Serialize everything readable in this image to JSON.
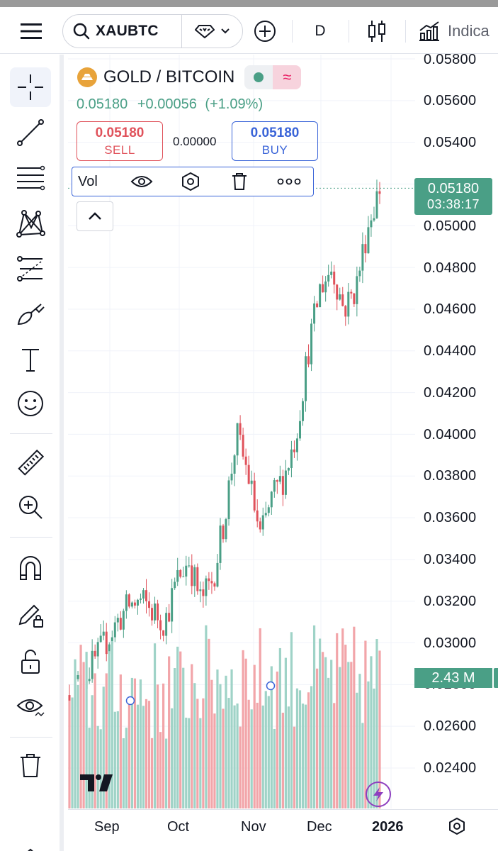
{
  "toolbar": {
    "symbol": "XAUBTC",
    "interval": "D",
    "indicators_label": "Indica",
    "icons": [
      "menu-icon",
      "search-icon",
      "diamond-icon",
      "chevron-down-icon",
      "plus-circle-icon",
      "candlestick-icon",
      "indicators-icon"
    ]
  },
  "legend": {
    "title": "GOLD / BITCOIN",
    "last": "0.05180",
    "change": "+0.00056",
    "change_pct": "(+1.09%)",
    "sell_price": "0.05180",
    "sell_label": "SELL",
    "spread": "0.00000",
    "buy_price": "0.05180",
    "buy_label": "BUY",
    "vol_label": "Vol"
  },
  "price_scale": {
    "labels": [
      "0.05800",
      "0.05600",
      "0.05400",
      "0.05000",
      "0.04800",
      "0.04600",
      "0.04400",
      "0.04200",
      "0.04000",
      "0.03800",
      "0.03600",
      "0.03400",
      "0.03200",
      "0.03000",
      "0.02800",
      "0.02600",
      "0.02400"
    ],
    "last_price": "0.05180",
    "countdown": "03:38:17",
    "volume_tag": "2.43 M"
  },
  "time_axis": {
    "labels": [
      "Sep",
      "Oct",
      "Nov",
      "Dec"
    ],
    "year": "2026"
  },
  "colors": {
    "up": "#4a9f86",
    "down": "#e0525b",
    "up_volume": "#9fd3c7",
    "down_volume": "#f2a5a9",
    "accent_blue": "#3a64d8"
  },
  "chart_data": {
    "type": "candlestick",
    "title": "",
    "ylim": [
      0.023,
      0.058
    ],
    "x_labels": [
      "Sep",
      "Oct",
      "Nov",
      "Dec",
      "2026"
    ],
    "ohlc_close_approx": [
      0.0275,
      0.0282,
      0.029,
      0.03,
      0.031,
      0.0318,
      0.032,
      0.0315,
      0.031,
      0.033,
      0.034,
      0.032,
      0.033,
      0.036,
      0.04,
      0.038,
      0.035,
      0.037,
      0.038,
      0.04,
      0.044,
      0.047,
      0.048,
      0.046,
      0.047,
      0.05,
      0.0518
    ],
    "last": 0.0518
  }
}
